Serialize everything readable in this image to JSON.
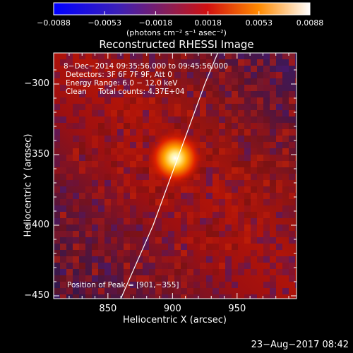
{
  "chart_data": {
    "type": "heatmap",
    "title": "Reconstructed RHESSI Image",
    "xlabel": "Heliocentric X (arcsec)",
    "ylabel": "Heliocentric Y (arcsec)",
    "xlim": [
      808,
      996
    ],
    "ylim": [
      -452,
      -278
    ],
    "x_ticks": [
      850,
      900,
      950
    ],
    "y_ticks": [
      -300,
      -350,
      -400,
      -450
    ],
    "x_tick_labels": [
      "850",
      "900",
      "950"
    ],
    "y_tick_labels": [
      "−300",
      "−350",
      "−400",
      "−450"
    ],
    "colorbar": {
      "min": -0.0088,
      "max": 0.0088,
      "ticks": [
        -0.0088,
        -0.0053,
        -0.0018,
        0.0018,
        0.0053,
        0.0088
      ],
      "tick_labels": [
        "−0.0088",
        "−0.0053",
        "−0.0018",
        "0.0018",
        "0.0053",
        "0.0088"
      ],
      "units_label": "(photons cm⁻² s⁻¹ asec⁻²)"
    },
    "peak": {
      "x": 901,
      "y": -355
    },
    "annotations": [
      "8−Dec−2014 09:35:56.000 to 09:45:56.000",
      "Detectors: 3F 6F 7F 9F, Att 0",
      "Energy Range: 6.0 − 12.0 keV",
      "Clean     Total counts: 4.37E+04"
    ],
    "peak_label": "Position of Peak = [901,−355]",
    "limb_line": [
      [
        860,
        -452
      ],
      [
        885,
        -400
      ],
      [
        905,
        -350
      ],
      [
        925,
        -300
      ],
      [
        935,
        -278
      ]
    ]
  },
  "footer": {
    "date": "23−Aug−2017 08:42"
  },
  "colors": {
    "background": "#000000",
    "text": "#ffffff",
    "limb": "#ffffff"
  }
}
